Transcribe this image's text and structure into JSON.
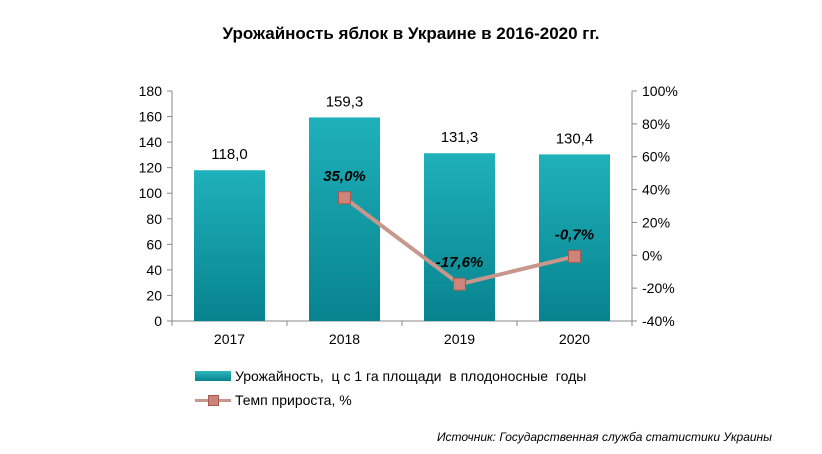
{
  "chart_data": {
    "type": "bar",
    "title": "Урожайность яблок в Украине в 2016-2020 гг.",
    "categories": [
      "2017",
      "2018",
      "2019",
      "2020"
    ],
    "series": [
      {
        "name": "Урожайность,  ц с 1 га площади  в плодоносные  годы",
        "type": "bar",
        "axis": "left",
        "values": [
          118.0,
          159.3,
          131.3,
          130.4
        ],
        "labels": [
          "118,0",
          "159,3",
          "131,3",
          "130,4"
        ],
        "color": "#119aa6"
      },
      {
        "name": "Темп прироста, %",
        "type": "line",
        "axis": "right",
        "values": [
          null,
          35.0,
          -17.6,
          -0.7
        ],
        "labels": [
          "",
          "35,0%",
          "-17,6%",
          "-0,7%"
        ],
        "color": "#c8978b",
        "marker_color": "#cd8579"
      }
    ],
    "y_left": {
      "ylim": [
        0,
        180
      ],
      "ticks": [
        "0",
        "20",
        "40",
        "60",
        "80",
        "100",
        "120",
        "140",
        "160",
        "180"
      ]
    },
    "y_right": {
      "ylim": [
        -40,
        100
      ],
      "ticks": [
        "-40%",
        "-20%",
        "0%",
        "20%",
        "40%",
        "60%",
        "80%",
        "100%"
      ]
    },
    "grid": false,
    "legend_position": "bottom-left"
  },
  "source": "Источник: Государственная служба статистики Украины"
}
